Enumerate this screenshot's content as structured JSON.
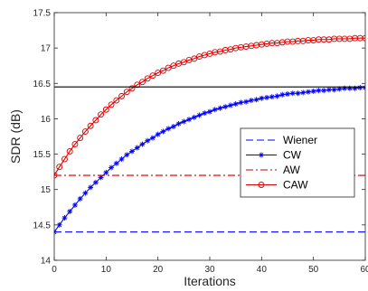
{
  "chart_data": {
    "type": "line",
    "xlabel": "Iterations",
    "ylabel": "SDR (dB)",
    "xlim": [
      0,
      60
    ],
    "ylim": [
      14,
      17.5
    ],
    "xticks": [
      "0",
      "10",
      "20",
      "30",
      "40",
      "50",
      "60"
    ],
    "yticks": [
      "14",
      "14.5",
      "15",
      "15.5",
      "16",
      "16.5",
      "17",
      "17.5"
    ],
    "grid": false,
    "legend_position": "center-right",
    "series": [
      {
        "name": "Wiener",
        "style": "dashed",
        "marker": "none",
        "color": "#0000ff",
        "x": [
          0,
          60
        ],
        "y": [
          14.4,
          14.4
        ]
      },
      {
        "name": "CW",
        "style": "solid",
        "marker": "asterisk",
        "color": "#0000ff",
        "x": [
          0,
          1,
          2,
          3,
          4,
          5,
          6,
          7,
          8,
          9,
          10,
          11,
          12,
          13,
          14,
          15,
          16,
          17,
          18,
          19,
          20,
          21,
          22,
          23,
          24,
          25,
          26,
          27,
          28,
          29,
          30,
          31,
          32,
          33,
          34,
          35,
          36,
          37,
          38,
          39,
          40,
          41,
          42,
          43,
          44,
          45,
          46,
          47,
          48,
          49,
          50,
          51,
          52,
          53,
          54,
          55,
          56,
          57,
          58,
          59,
          60
        ],
        "y": [
          14.4,
          14.5,
          14.6,
          14.69,
          14.78,
          14.87,
          14.95,
          15.03,
          15.1,
          15.17,
          15.24,
          15.31,
          15.37,
          15.43,
          15.49,
          15.54,
          15.59,
          15.64,
          15.69,
          15.73,
          15.78,
          15.82,
          15.86,
          15.89,
          15.93,
          15.96,
          15.99,
          16.02,
          16.05,
          16.08,
          16.1,
          16.13,
          16.15,
          16.17,
          16.19,
          16.21,
          16.23,
          16.24,
          16.26,
          16.27,
          16.29,
          16.3,
          16.31,
          16.32,
          16.34,
          16.35,
          16.36,
          16.36,
          16.37,
          16.38,
          16.39,
          16.4,
          16.4,
          16.41,
          16.41,
          16.42,
          16.43,
          16.43,
          16.43,
          16.44,
          16.44
        ]
      },
      {
        "name": "AW",
        "style": "dashdot",
        "marker": "none",
        "color": "#cc0000",
        "x": [
          0,
          60
        ],
        "y": [
          15.2,
          15.2
        ]
      },
      {
        "name": "CAW",
        "style": "solid",
        "marker": "circle",
        "color": "#dd0000",
        "x": [
          0,
          1,
          2,
          3,
          4,
          5,
          6,
          7,
          8,
          9,
          10,
          11,
          12,
          13,
          14,
          15,
          16,
          17,
          18,
          19,
          20,
          21,
          22,
          23,
          24,
          25,
          26,
          27,
          28,
          29,
          30,
          31,
          32,
          33,
          34,
          35,
          36,
          37,
          38,
          39,
          40,
          41,
          42,
          43,
          44,
          45,
          46,
          47,
          48,
          49,
          50,
          51,
          52,
          53,
          54,
          55,
          56,
          57,
          58,
          59,
          60
        ],
        "y": [
          15.2,
          15.32,
          15.43,
          15.54,
          15.64,
          15.73,
          15.82,
          15.9,
          15.98,
          16.06,
          16.13,
          16.2,
          16.26,
          16.32,
          16.38,
          16.43,
          16.48,
          16.52,
          16.57,
          16.61,
          16.65,
          16.68,
          16.72,
          16.75,
          16.78,
          16.8,
          16.83,
          16.85,
          16.88,
          16.9,
          16.92,
          16.94,
          16.95,
          16.97,
          16.98,
          17.0,
          17.01,
          17.02,
          17.03,
          17.04,
          17.05,
          17.06,
          17.07,
          17.07,
          17.08,
          17.09,
          17.09,
          17.1,
          17.1,
          17.11,
          17.11,
          17.12,
          17.12,
          17.12,
          17.13,
          17.13,
          17.13,
          17.13,
          17.14,
          17.14,
          17.14
        ]
      },
      {
        "name": "",
        "style": "solid",
        "marker": "none",
        "color": "#000000",
        "x": [
          0,
          60
        ],
        "y": [
          16.45,
          16.45
        ]
      }
    ]
  }
}
